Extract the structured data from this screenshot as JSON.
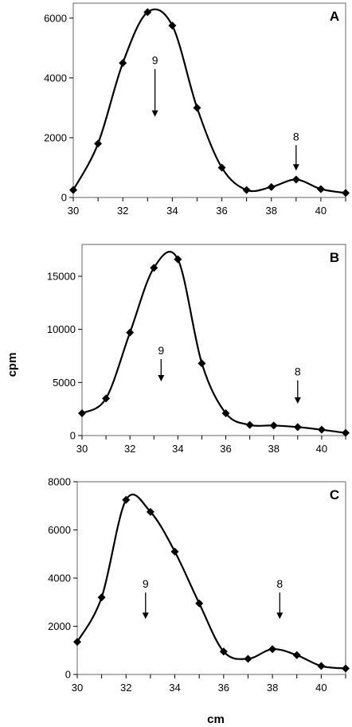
{
  "ylabel": "cpm",
  "xlabel": "cm",
  "chart_data": [
    {
      "type": "line",
      "panel_label": "A",
      "x": [
        30,
        31,
        32,
        33,
        34,
        35,
        36,
        37,
        38,
        39,
        40,
        41
      ],
      "y": [
        250,
        1800,
        4500,
        6200,
        5750,
        3000,
        1000,
        250,
        350,
        600,
        280,
        150
      ],
      "xlim": [
        30,
        41
      ],
      "ylim": [
        0,
        6500
      ],
      "xticks": [
        30,
        32,
        34,
        36,
        38,
        40
      ],
      "yticks": [
        0,
        2000,
        4000,
        6000
      ],
      "annotations": [
        {
          "label": "9",
          "x": 33.3,
          "y_top": 4300,
          "y_bottom": 2700
        },
        {
          "label": "8",
          "x": 39.0,
          "y_top": 1750,
          "y_bottom": 900
        }
      ]
    },
    {
      "type": "line",
      "panel_label": "B",
      "x": [
        30,
        31,
        32,
        33,
        34,
        35,
        36,
        37,
        38,
        39,
        40,
        41
      ],
      "y": [
        2100,
        3500,
        9700,
        15800,
        16600,
        6800,
        2100,
        1000,
        950,
        800,
        550,
        250
      ],
      "xlim": [
        30,
        41
      ],
      "ylim": [
        0,
        18000
      ],
      "xticks": [
        30,
        32,
        34,
        36,
        38,
        40
      ],
      "yticks": [
        0,
        5000,
        10000,
        15000
      ],
      "annotations": [
        {
          "label": "9",
          "x": 33.3,
          "y_top": 7200,
          "y_bottom": 5100
        },
        {
          "label": "8",
          "x": 39.0,
          "y_top": 5200,
          "y_bottom": 3000
        }
      ]
    },
    {
      "type": "line",
      "panel_label": "C",
      "x": [
        30,
        31,
        32,
        33,
        34,
        35,
        36,
        37,
        38,
        39,
        40,
        41
      ],
      "y": [
        1350,
        3200,
        7250,
        6750,
        5100,
        2950,
        950,
        650,
        1050,
        800,
        350,
        250
      ],
      "xlim": [
        30,
        41
      ],
      "ylim": [
        0,
        8000
      ],
      "xticks": [
        30,
        32,
        34,
        36,
        38,
        40
      ],
      "yticks": [
        0,
        2000,
        4000,
        6000,
        8000
      ],
      "annotations": [
        {
          "label": "9",
          "x": 32.8,
          "y_top": 3400,
          "y_bottom": 2300
        },
        {
          "label": "8",
          "x": 38.3,
          "y_top": 3400,
          "y_bottom": 2300
        }
      ]
    }
  ]
}
